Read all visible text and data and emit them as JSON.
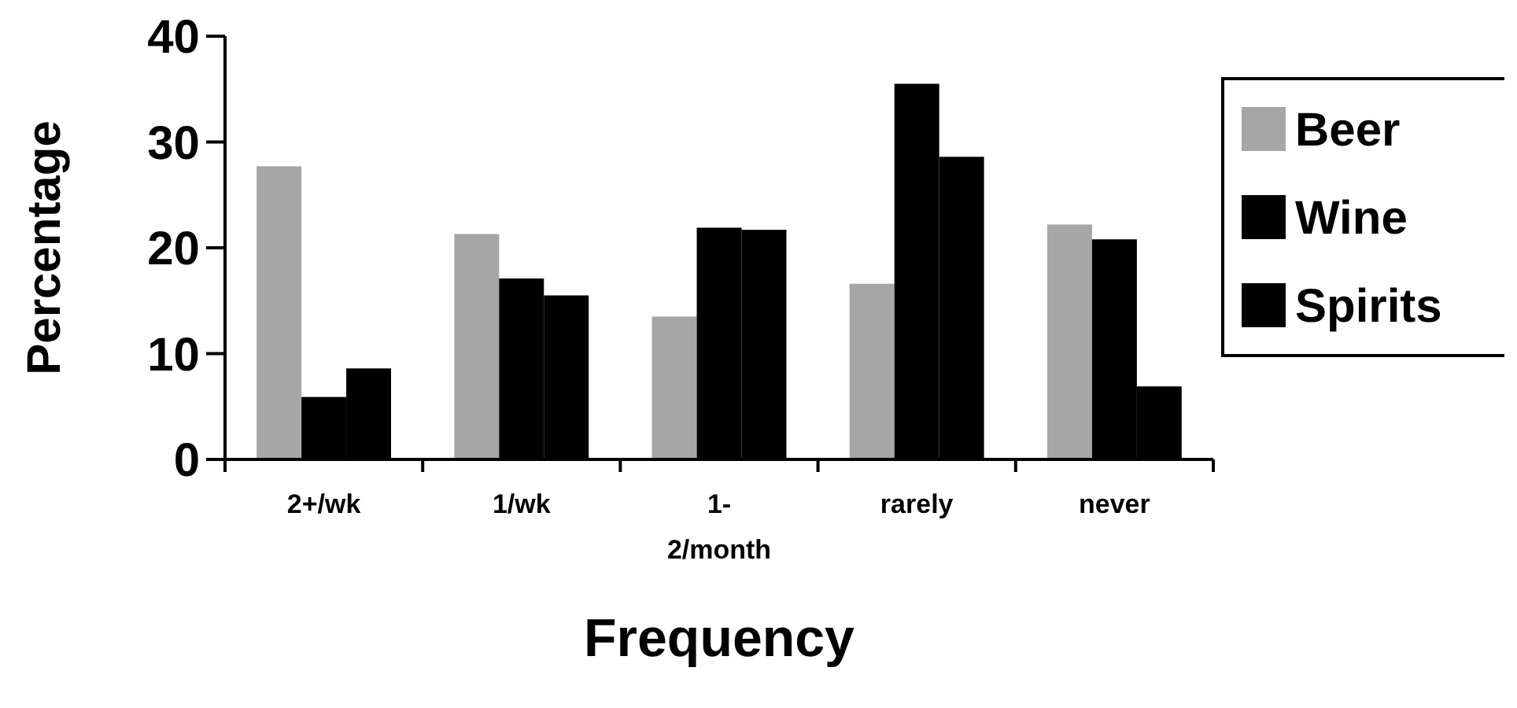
{
  "chart_data": {
    "type": "bar",
    "xlabel": "Frequency",
    "ylabel": "Percentage",
    "categories": [
      "2+/wk",
      "1/wk",
      "1-2/month",
      "rarely",
      "never"
    ],
    "series": [
      {
        "name": "Beer",
        "color": "#a6a6a6",
        "values": [
          27.7,
          21.3,
          13.5,
          16.6,
          22.2
        ]
      },
      {
        "name": "Wine",
        "color": "#000000",
        "values": [
          5.9,
          17.1,
          21.9,
          35.5,
          20.8
        ]
      },
      {
        "name": "Spirits",
        "color": "#000000",
        "values": [
          8.6,
          15.5,
          21.7,
          28.6,
          6.9
        ]
      }
    ],
    "ylim": [
      0,
      40
    ],
    "yticks": [
      0,
      10,
      20,
      30,
      40
    ],
    "grid": false,
    "legend": "right"
  }
}
